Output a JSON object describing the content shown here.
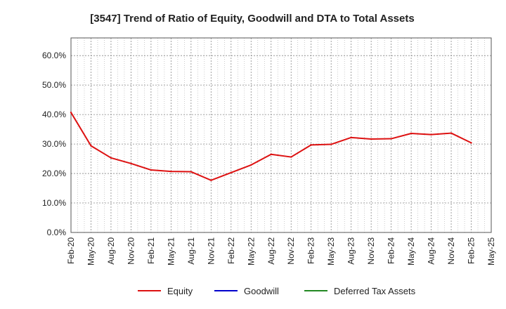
{
  "chart_data": {
    "type": "line",
    "title": "[3547]  Trend of Ratio of Equity, Goodwill and DTA to Total Assets",
    "xlabel": "",
    "ylabel": "",
    "ylim": [
      0,
      0.66
    ],
    "y_ticks": [
      {
        "value": 0.0,
        "label": "0.0%"
      },
      {
        "value": 0.1,
        "label": "10.0%"
      },
      {
        "value": 0.2,
        "label": "20.0%"
      },
      {
        "value": 0.3,
        "label": "30.0%"
      },
      {
        "value": 0.4,
        "label": "40.0%"
      },
      {
        "value": 0.5,
        "label": "50.0%"
      },
      {
        "value": 0.6,
        "label": "60.0%"
      }
    ],
    "x_ticks": [
      "Feb-20",
      "May-20",
      "Aug-20",
      "Nov-20",
      "Feb-21",
      "May-21",
      "Aug-21",
      "Nov-21",
      "Feb-22",
      "May-22",
      "Aug-22",
      "Nov-22",
      "Feb-23",
      "May-23",
      "Aug-23",
      "Nov-23",
      "Feb-24",
      "May-24",
      "Aug-24",
      "Nov-24",
      "Feb-25",
      "May-25"
    ],
    "grid": true,
    "legend_position": "bottom",
    "series": [
      {
        "name": "Equity",
        "color": "#dd1111",
        "values": [
          0.407,
          0.294,
          0.253,
          0.234,
          0.212,
          0.207,
          0.206,
          0.177,
          0.203,
          0.229,
          0.265,
          0.256,
          0.297,
          0.299,
          0.322,
          0.317,
          0.318,
          0.336,
          0.332,
          0.337,
          0.304
        ]
      },
      {
        "name": "Goodwill",
        "color": "#0000cc",
        "values": []
      },
      {
        "name": "Deferred Tax Assets",
        "color": "#228822",
        "values": []
      }
    ]
  }
}
